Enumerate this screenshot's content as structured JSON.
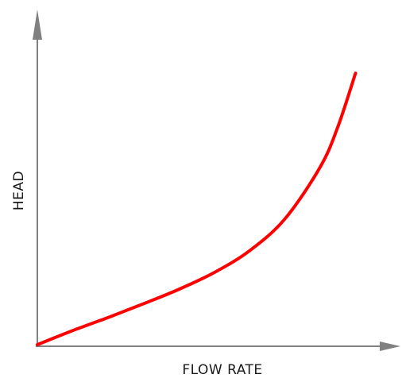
{
  "chart_data": {
    "type": "line",
    "title": "",
    "xlabel": "FLOW RATE",
    "ylabel": "HEAD",
    "xlim": [
      0,
      100
    ],
    "ylim": [
      0,
      100
    ],
    "grid": false,
    "ticks": false,
    "series": [
      {
        "color": "#ff0000",
        "points": [
          [
            0,
            0
          ],
          [
            10,
            4.2
          ],
          [
            20,
            8.1
          ],
          [
            30,
            12.2
          ],
          [
            40,
            16.5
          ],
          [
            50,
            21.5
          ],
          [
            60,
            28.0
          ],
          [
            70,
            37.5
          ],
          [
            80,
            53.0
          ],
          [
            85,
            65.0
          ],
          [
            90,
            81.0
          ]
        ]
      }
    ],
    "axis_color": "#808080"
  }
}
